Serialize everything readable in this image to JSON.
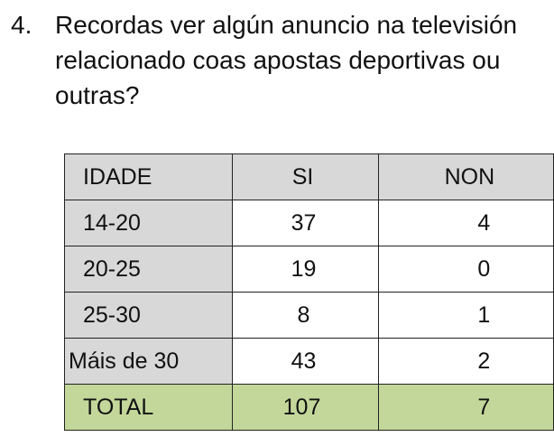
{
  "question": {
    "number": "4.",
    "lines": [
      "Recordas ver algún anuncio na televisión",
      "relacionado  coas apostas deportivas ou",
      "outras?"
    ]
  },
  "table": {
    "headers": [
      "IDADE",
      "SI",
      "NON"
    ],
    "rows": [
      {
        "idade": "14-20",
        "si": "37",
        "non": "4"
      },
      {
        "idade": "20-25",
        "si": "19",
        "non": "0"
      },
      {
        "idade": "25-30",
        "si": "8",
        "non": "1"
      },
      {
        "idade": "Máis de 30",
        "si": "43",
        "non": "2"
      }
    ],
    "total": {
      "label": "TOTAL",
      "si": "107",
      "non": "7"
    }
  },
  "colors": {
    "header_background": "#d8d8d8",
    "total_background": "#c4d79b"
  }
}
